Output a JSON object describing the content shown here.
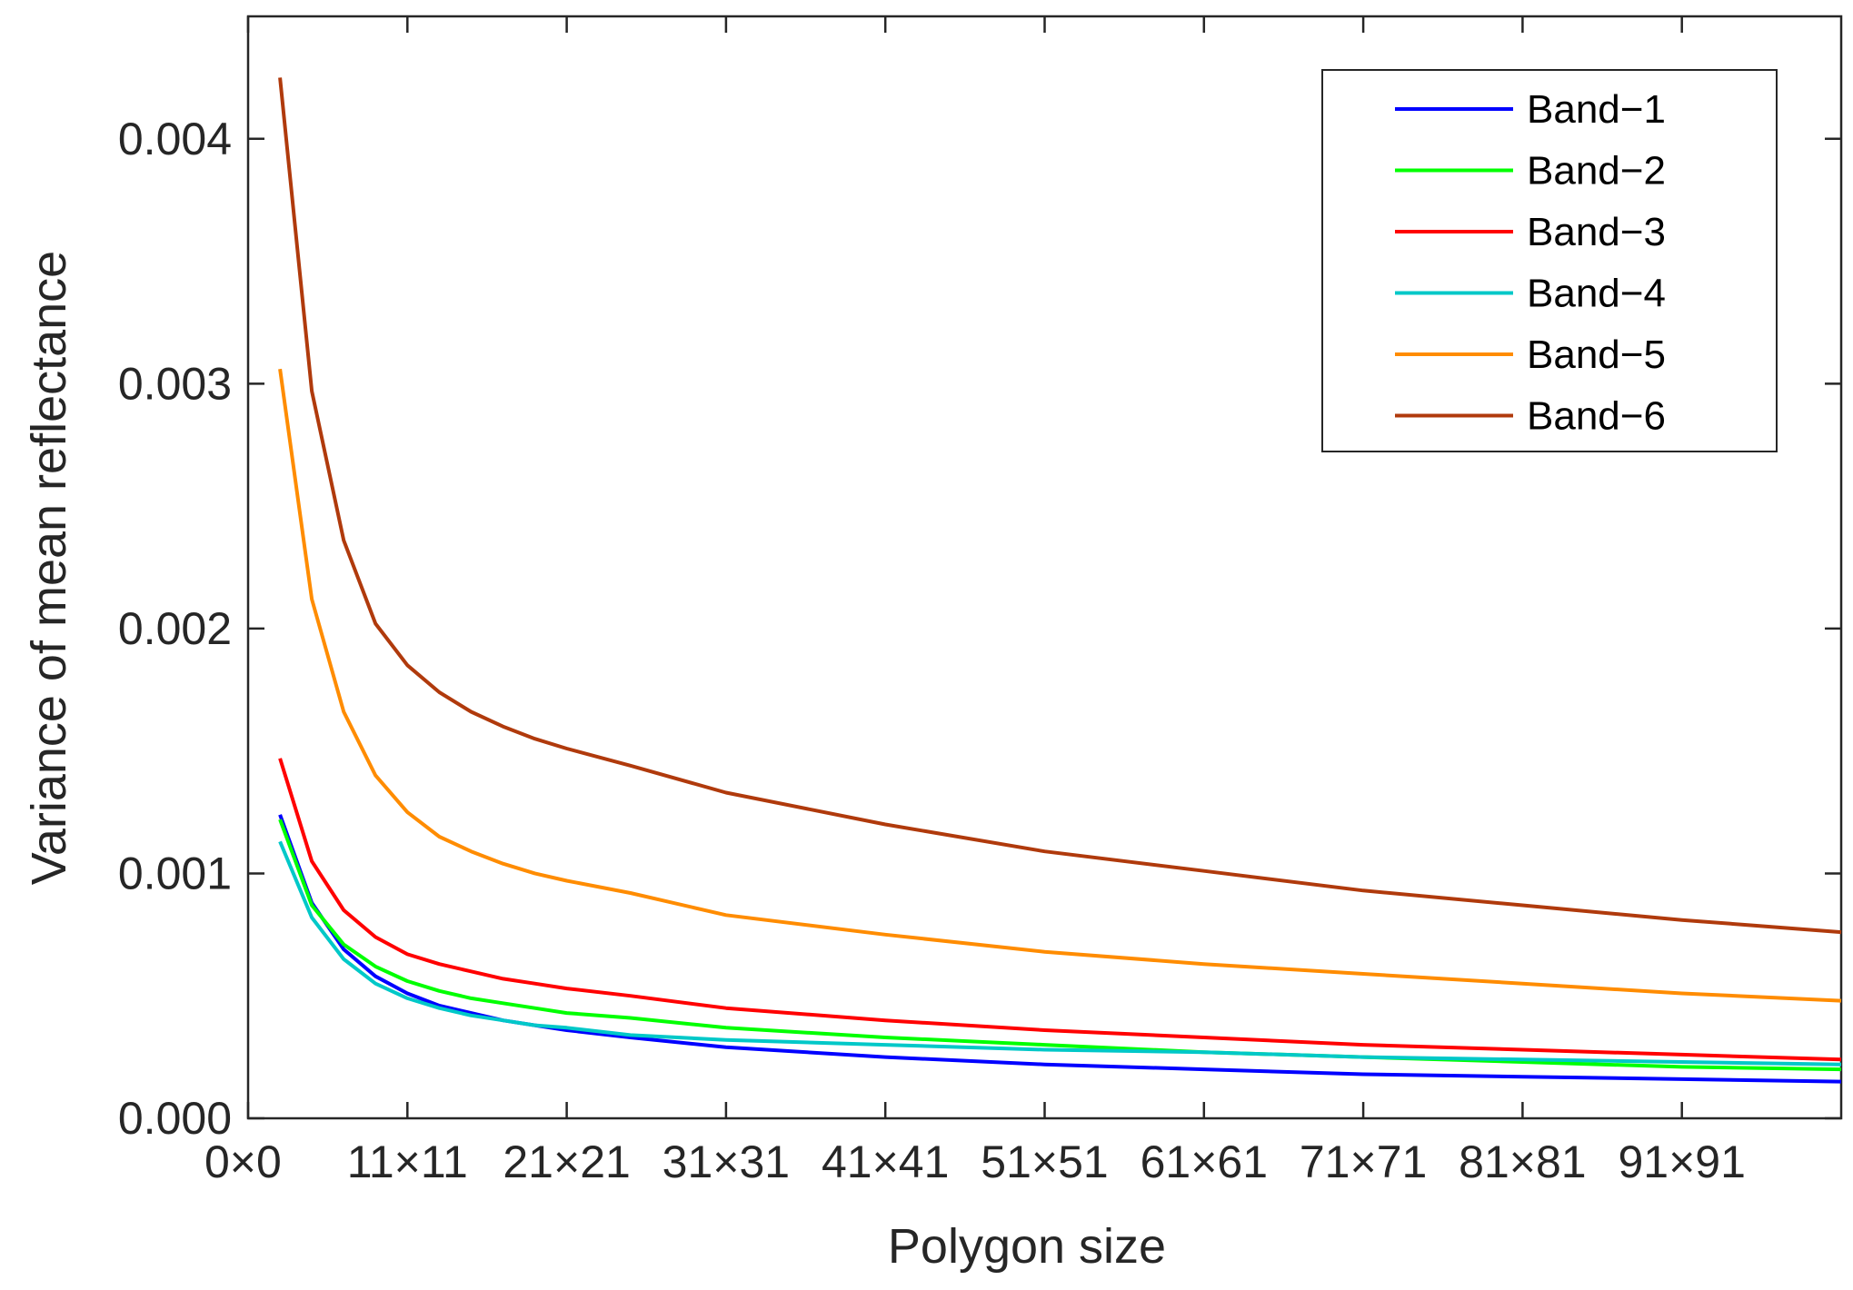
{
  "chart_data": {
    "type": "line",
    "title": "",
    "xlabel": "Polygon size",
    "ylabel": "Variance of mean reflectance",
    "x_tick_labels": [
      "0×0",
      "11×11",
      "21×21",
      "31×31",
      "41×41",
      "51×51",
      "61×61",
      "71×71",
      "81×81",
      "91×91"
    ],
    "x_ticks": [
      1,
      11,
      21,
      31,
      41,
      51,
      61,
      71,
      81,
      91
    ],
    "xlim": [
      1,
      101
    ],
    "y_tick_labels": [
      "0.000",
      "0.001",
      "0.002",
      "0.003",
      "0.004"
    ],
    "y_ticks": [
      0,
      0.001,
      0.002,
      0.003,
      0.004
    ],
    "ylim": [
      0,
      0.0045
    ],
    "grid": false,
    "legend_position": "top-right",
    "x": [
      3,
      5,
      7,
      9,
      11,
      13,
      15,
      17,
      19,
      21,
      25,
      31,
      41,
      51,
      61,
      71,
      81,
      91,
      101
    ],
    "series": [
      {
        "name": "Band−1",
        "color": "#0000ff",
        "values": [
          0.00124,
          0.00088,
          0.00069,
          0.00058,
          0.00051,
          0.00046,
          0.00043,
          0.0004,
          0.00038,
          0.00036,
          0.00033,
          0.00029,
          0.00025,
          0.00022,
          0.0002,
          0.00018,
          0.00017,
          0.00016,
          0.00015
        ]
      },
      {
        "name": "Band−2",
        "color": "#00ff00",
        "values": [
          0.00122,
          0.00087,
          0.00071,
          0.00062,
          0.00056,
          0.00052,
          0.00049,
          0.00047,
          0.00045,
          0.00043,
          0.00041,
          0.00037,
          0.00033,
          0.0003,
          0.00027,
          0.00025,
          0.00023,
          0.00021,
          0.0002
        ]
      },
      {
        "name": "Band−3",
        "color": "#ff0000",
        "values": [
          0.00147,
          0.00105,
          0.00085,
          0.00074,
          0.00067,
          0.00063,
          0.0006,
          0.00057,
          0.00055,
          0.00053,
          0.0005,
          0.00045,
          0.0004,
          0.00036,
          0.00033,
          0.0003,
          0.00028,
          0.00026,
          0.00024
        ]
      },
      {
        "name": "Band−4",
        "color": "#00c8c8",
        "values": [
          0.00113,
          0.00082,
          0.00065,
          0.00055,
          0.00049,
          0.00045,
          0.00042,
          0.0004,
          0.00038,
          0.00037,
          0.00034,
          0.00032,
          0.0003,
          0.00028,
          0.00027,
          0.00025,
          0.00024,
          0.00023,
          0.00022
        ]
      },
      {
        "name": "Band−5",
        "color": "#ff8c00",
        "values": [
          0.00306,
          0.00212,
          0.00166,
          0.0014,
          0.00125,
          0.00115,
          0.00109,
          0.00104,
          0.001,
          0.00097,
          0.00092,
          0.00083,
          0.00075,
          0.00068,
          0.00063,
          0.00059,
          0.00055,
          0.00051,
          0.00048
        ]
      },
      {
        "name": "Band−6",
        "color": "#b03a0c",
        "values": [
          0.00425,
          0.00297,
          0.00236,
          0.00202,
          0.00185,
          0.00174,
          0.00166,
          0.0016,
          0.00155,
          0.00151,
          0.00144,
          0.00133,
          0.0012,
          0.00109,
          0.00101,
          0.00093,
          0.00087,
          0.00081,
          0.00076
        ]
      }
    ]
  }
}
